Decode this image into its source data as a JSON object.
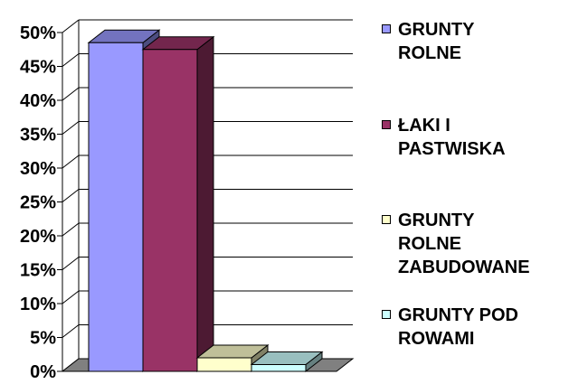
{
  "chart_data": {
    "type": "bar",
    "categories": [
      "GRUNTY ROLNE",
      "ŁAKI I PASTWISKA",
      "GRUNTY ROLNE ZABUDOWANE",
      "GRUNTY POD ROWAMI"
    ],
    "values": [
      48.5,
      47.5,
      2.0,
      1.0
    ],
    "ylim": [
      0,
      50
    ],
    "yticks": [
      "0%",
      "5%",
      "10%",
      "15%",
      "20%",
      "25%",
      "30%",
      "35%",
      "40%",
      "45%",
      "50%"
    ],
    "grid": true,
    "legend_position": "right",
    "colors": [
      "#9999ff",
      "#993366",
      "#ffffcc",
      "#ccffff"
    ]
  },
  "legend": {
    "items": [
      {
        "label": "GRUNTY\nROLNE",
        "color": "#9999ff"
      },
      {
        "label": "ŁAKI I\nPASTWISKA",
        "color": "#993366"
      },
      {
        "label": "GRUNTY\nROLNE\nZABUDOWANE",
        "color": "#ffffcc"
      },
      {
        "label": "GRUNTY POD\nROWAMI",
        "color": "#ccffff"
      }
    ]
  }
}
